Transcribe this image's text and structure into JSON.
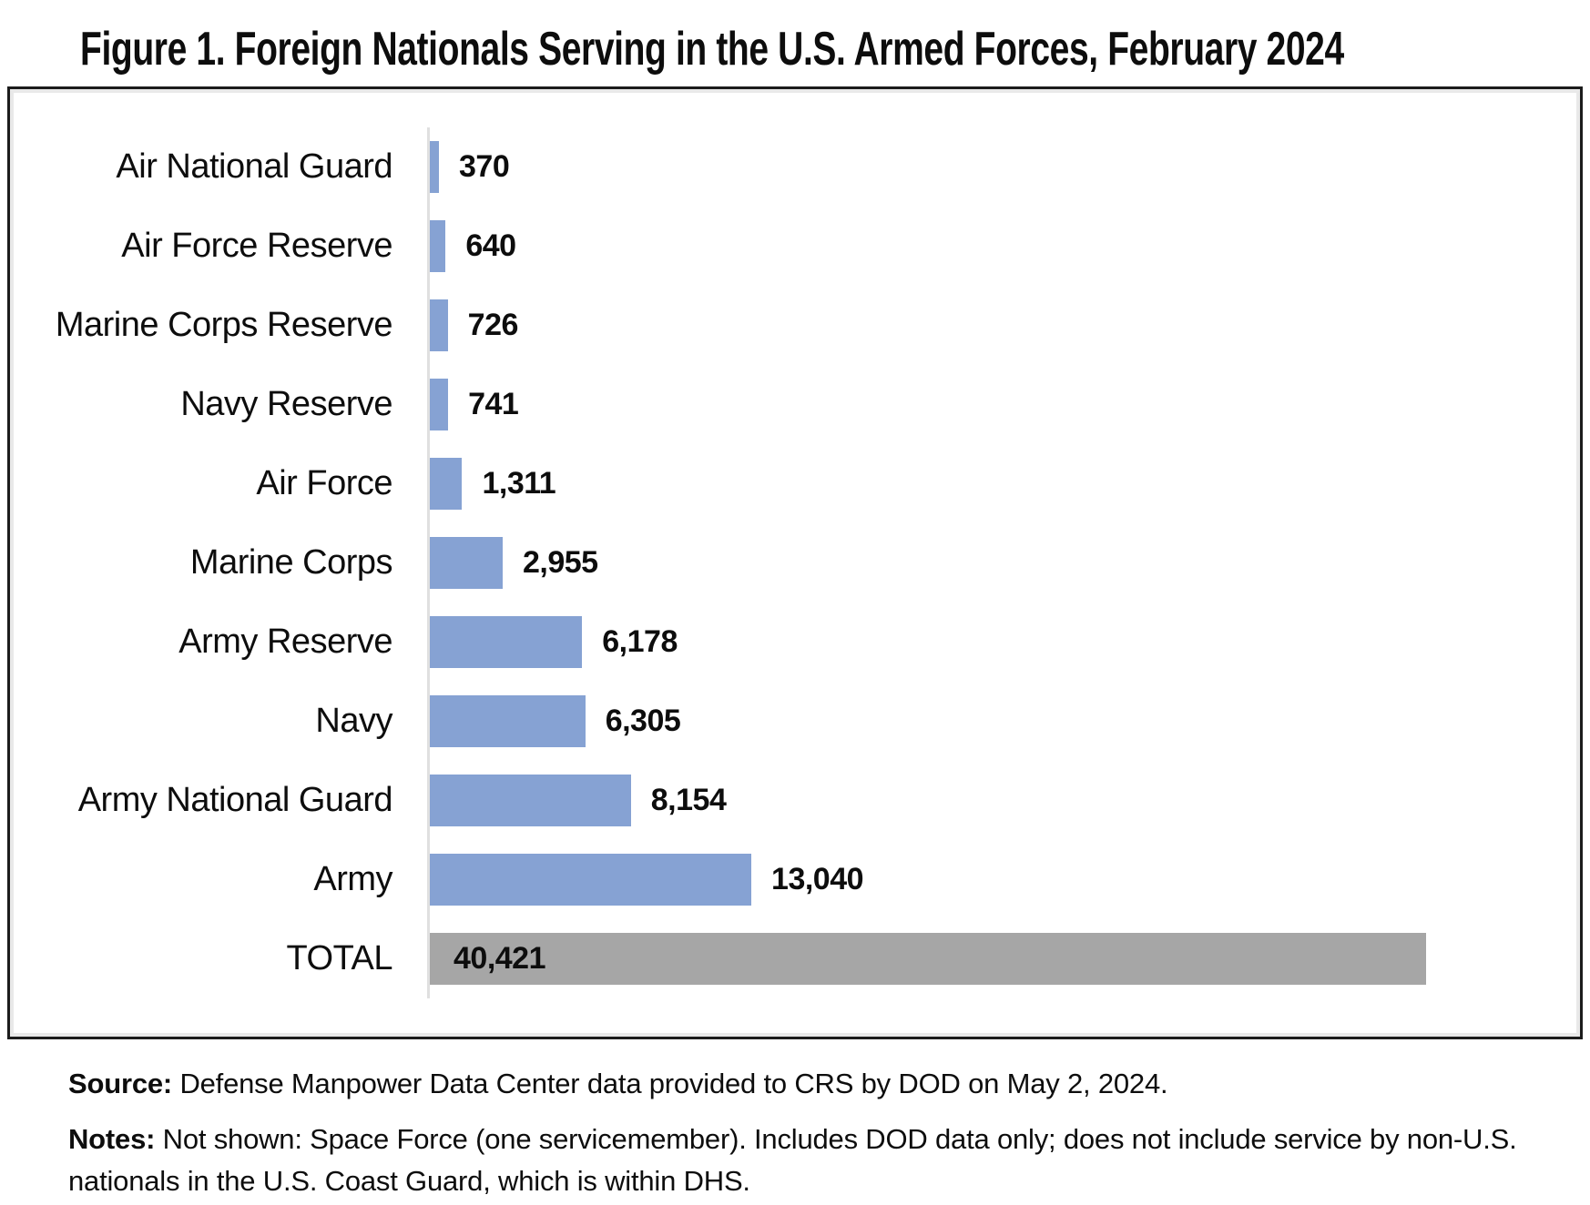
{
  "title": "Figure 1. Foreign Nationals Serving in the U.S. Armed Forces, February 2024",
  "chart_data": {
    "type": "bar",
    "orientation": "horizontal",
    "title": "Figure 1. Foreign Nationals Serving in the U.S. Armed Forces, February 2024",
    "categories": [
      "Air National Guard",
      "Air Force Reserve",
      "Marine Corps Reserve",
      "Navy Reserve",
      "Air Force",
      "Marine Corps",
      "Army Reserve",
      "Navy",
      "Army National Guard",
      "Army",
      "TOTAL"
    ],
    "values": [
      370,
      640,
      726,
      741,
      1311,
      2955,
      6178,
      6305,
      8154,
      13040,
      40421
    ],
    "value_labels": [
      "370",
      "640",
      "726",
      "741",
      "1,311",
      "2,955",
      "6,178",
      "6,305",
      "8,154",
      "13,040",
      "40,421"
    ],
    "xlabel": "",
    "ylabel": "",
    "xlim": [
      0,
      46500
    ],
    "grid": false,
    "legend": false,
    "bar_color": "#86A2D3",
    "total_bar_color": "#A6A6A6",
    "axis_line_color": "#E0E0E0",
    "value_label_placement": "outside-right, TOTAL inside-left"
  },
  "footer": {
    "source_label": "Source:",
    "source_text": " Defense Manpower Data Center data provided to CRS by DOD on May 2, 2024.",
    "notes_label": "Notes:",
    "notes_text": " Not shown: Space Force (one servicemember). Includes DOD data only; does not include service by non-U.S. nationals in the U.S. Coast Guard, which is within DHS."
  }
}
